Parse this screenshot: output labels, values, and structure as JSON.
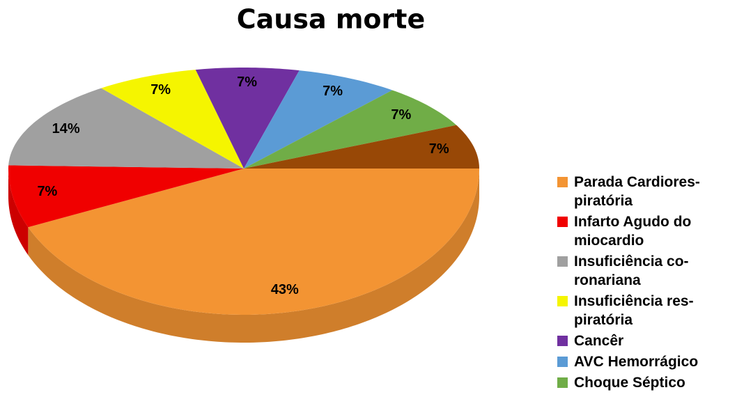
{
  "chart_data": {
    "type": "pie",
    "title": "Causa morte",
    "categories": [
      "Parada Cardiores-piratória",
      "Infarto Agudo do miocardio",
      "Insuficiência co-ronariana",
      "Insuficiência res-piratória",
      "Cancêr",
      "AVC Hemorrágico",
      "Choque Séptico",
      null
    ],
    "values": [
      43,
      7,
      14,
      7,
      7,
      7,
      7,
      7
    ],
    "value_labels": [
      "43%",
      "7%",
      "14%",
      "7%",
      "7%",
      "7%",
      "7%",
      "7%"
    ],
    "colors": [
      "#F39433",
      "#F00000",
      "#A0A0A0",
      "#F5F500",
      "#7030A0",
      "#5B9BD5",
      "#70AD47",
      "#984806"
    ],
    "legend": "right"
  }
}
